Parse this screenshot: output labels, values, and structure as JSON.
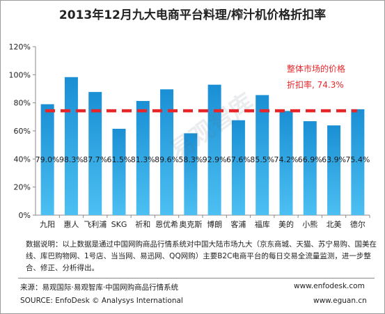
{
  "chart_data": {
    "type": "bar",
    "title": "2013年12月九大电商平台料理/榨汁机价格折扣率",
    "categories": [
      "九阳",
      "惠人",
      "飞利浦",
      "SKG",
      "祈和",
      "恩优希",
      "奥克斯",
      "博朗",
      "客浦",
      "福库",
      "美的",
      "小熊",
      "北美",
      "德尔"
    ],
    "values": [
      79.0,
      98.3,
      87.7,
      61.5,
      81.3,
      89.6,
      58.3,
      92.9,
      67.6,
      85.5,
      74.2,
      66.9,
      63.9,
      75.4
    ],
    "value_labels": [
      "79.0%",
      "98.3%",
      "87.7%",
      "61.5%",
      "81.3%",
      "89.6%",
      "58.3%",
      "92.9%",
      "67.6%",
      "85.5%",
      "74.2%",
      "66.9%",
      "63.9%",
      "75.4%"
    ],
    "yticks": [
      "0%",
      "20%",
      "40%",
      "60%",
      "80%",
      "100%",
      "120%"
    ],
    "ylim": [
      0,
      120
    ],
    "grid": false,
    "reference_line": {
      "value": 74.3,
      "label_line1": "整体市场的价格",
      "label_line2": "折扣率, 74.3%",
      "color": "#e8262a"
    },
    "watermark": "易观智库",
    "colors": {
      "bar_top": "#1a8fd4",
      "bar_bottom": "#4cc0f2",
      "value_label": "#1a1a1a"
    }
  },
  "note": "数据说明：以上数据是通过中国网购商品行情系统对中国大陆市场九大（京东商城、天猫、苏宁易购、国美在线、库巴购物网、1号店、当当网、易迅网、QQ网购）主要B2C电商平台的每日交易全流量监测，进一步整合、修正、分析得出。",
  "footer": {
    "source_cn": "来源：易观国际·易观智库·中国网购商品行情系统",
    "url1": "www.enfodesk.com",
    "source_en": "SOURCE: EnfoDesk © Analysys International",
    "url2": "www.eguan.cn"
  }
}
